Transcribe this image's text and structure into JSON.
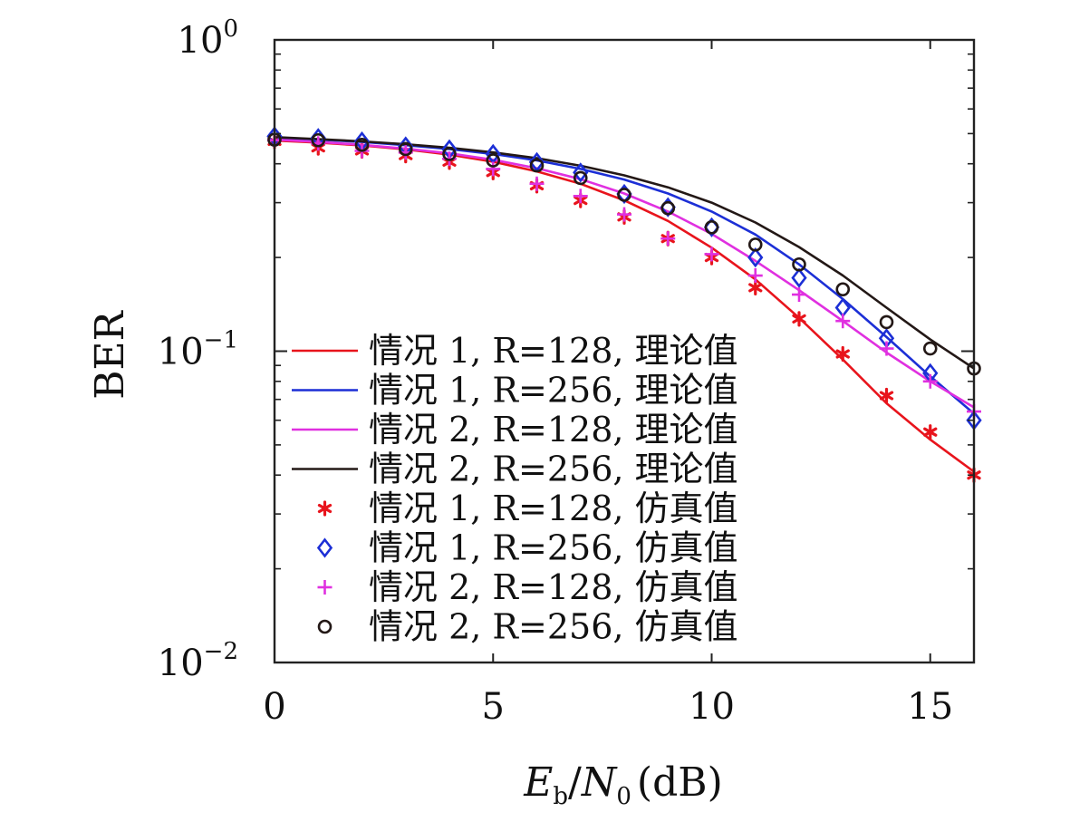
{
  "chart_data": {
    "type": "line",
    "xlabel": {
      "main": "E",
      "sub1": "b",
      "slash": "/",
      "main2": "N",
      "sub2": "0",
      "unit": "(dB)"
    },
    "ylabel": "BER",
    "xlim": [
      0,
      16
    ],
    "ylim": [
      0.01,
      1
    ],
    "yscale": "log",
    "xticks": [
      "0",
      "5",
      "10",
      "15"
    ],
    "xtick_values": [
      0,
      5,
      10,
      15
    ],
    "yticks": [
      {
        "value": 1,
        "base": "10",
        "exp": "0"
      },
      {
        "value": 0.1,
        "base": "10",
        "exp": "−1"
      },
      {
        "value": 0.01,
        "base": "10",
        "exp": "−2"
      }
    ],
    "legend_position": "bottom-left",
    "x": [
      0,
      1,
      2,
      3,
      4,
      5,
      6,
      7,
      8,
      9,
      10,
      11,
      12,
      13,
      14,
      15,
      16
    ],
    "series": [
      {
        "name": "情况 1, R=128, 理论值",
        "kind": "line",
        "color": "#e8141c",
        "values": [
          0.475,
          0.468,
          0.458,
          0.445,
          0.428,
          0.406,
          0.378,
          0.345,
          0.305,
          0.262,
          0.215,
          0.17,
          0.128,
          0.094,
          0.068,
          0.052,
          0.041
        ]
      },
      {
        "name": "情况 1, R=256, 理论值",
        "kind": "line",
        "color": "#1c2fd6",
        "values": [
          0.485,
          0.478,
          0.47,
          0.459,
          0.446,
          0.43,
          0.41,
          0.385,
          0.356,
          0.321,
          0.281,
          0.237,
          0.19,
          0.147,
          0.111,
          0.083,
          0.063
        ]
      },
      {
        "name": "情况 2, R=128, 理论值",
        "kind": "line",
        "color": "#e030e0",
        "values": [
          0.478,
          0.47,
          0.46,
          0.447,
          0.432,
          0.412,
          0.387,
          0.357,
          0.321,
          0.281,
          0.238,
          0.195,
          0.157,
          0.125,
          0.099,
          0.08,
          0.066
        ]
      },
      {
        "name": "情况 2, R=256, 理论值",
        "kind": "line",
        "color": "#231816",
        "values": [
          0.487,
          0.48,
          0.472,
          0.462,
          0.45,
          0.435,
          0.417,
          0.394,
          0.367,
          0.336,
          0.3,
          0.259,
          0.216,
          0.175,
          0.138,
          0.109,
          0.088
        ]
      },
      {
        "name": "情况 1, R=128, 仿真值",
        "kind": "marker",
        "marker": "asterisk",
        "color": "#e8141c",
        "values": [
          0.472,
          0.45,
          0.44,
          0.425,
          0.405,
          0.375,
          0.34,
          0.305,
          0.27,
          0.23,
          0.2,
          0.16,
          0.127,
          0.098,
          0.072,
          0.055,
          0.04
        ]
      },
      {
        "name": "情况 1, R=256, 仿真值",
        "kind": "marker",
        "marker": "diamond",
        "color": "#1c2fd6",
        "values": [
          0.49,
          0.484,
          0.472,
          0.455,
          0.445,
          0.43,
          0.405,
          0.375,
          0.32,
          0.29,
          0.25,
          0.2,
          0.172,
          0.138,
          0.11,
          0.085,
          0.06
        ]
      },
      {
        "name": "情况 2, R=128, 仿真值",
        "kind": "marker",
        "marker": "plus",
        "color": "#e030e0",
        "values": [
          0.476,
          0.465,
          0.44,
          0.435,
          0.415,
          0.385,
          0.345,
          0.315,
          0.275,
          0.23,
          0.205,
          0.175,
          0.152,
          0.125,
          0.102,
          0.08,
          0.064
        ]
      },
      {
        "name": "情况 2, R=256, 仿真值",
        "kind": "marker",
        "marker": "circle",
        "color": "#231816",
        "values": [
          0.478,
          0.476,
          0.46,
          0.446,
          0.43,
          0.41,
          0.395,
          0.36,
          0.318,
          0.288,
          0.25,
          0.22,
          0.19,
          0.158,
          0.124,
          0.102,
          0.088
        ]
      }
    ]
  }
}
